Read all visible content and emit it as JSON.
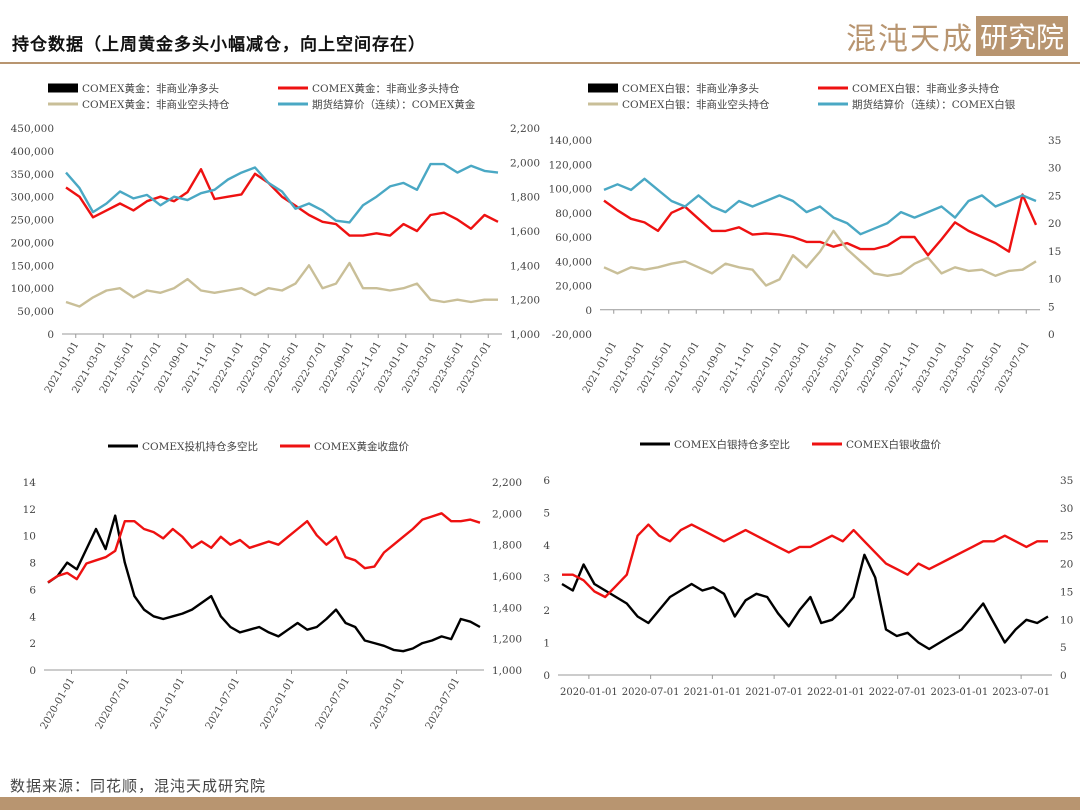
{
  "header": {
    "title": "持仓数据（上周黄金多头小幅减仓，向上空间存在）",
    "logo_text": "混沌天成",
    "logo_box_text": "研究院"
  },
  "footer": {
    "source": "数据来源：同花顺，混沌天成研究院"
  },
  "colors": {
    "black": "#000000",
    "red": "#ee1111",
    "tan": "#c9bf98",
    "blue": "#4aa8c4",
    "brand": "#b89570"
  },
  "chart_data": [
    {
      "id": "gold-positions",
      "type": "line",
      "title": "",
      "legend": [
        "COMEX黄金：非商业净多头",
        "COMEX黄金：非商业多头持仓",
        "COMEX黄金：非商业空头持仓",
        "期货结算价（连续）：COMEX黄金"
      ],
      "x_ticks": [
        "2021-01-01",
        "2021-03-01",
        "2021-05-01",
        "2021-07-01",
        "2021-09-01",
        "2021-11-01",
        "2022-01-01",
        "2022-03-01",
        "2022-05-01",
        "2022-07-01",
        "2022-09-01",
        "2022-11-01",
        "2023-01-01",
        "2023-03-01",
        "2023-05-01",
        "2023-07-01"
      ],
      "y_left": {
        "ticks": [
          "0",
          "50,000",
          "100,000",
          "150,000",
          "200,000",
          "250,000",
          "300,000",
          "350,000",
          "400,000",
          "450,000"
        ],
        "min": 0,
        "max": 450000
      },
      "y_right": {
        "ticks": [
          "1,000",
          "1,200",
          "1,400",
          "1,600",
          "1,800",
          "2,000",
          "2,200"
        ],
        "min": 1000,
        "max": 2200
      },
      "series": [
        {
          "name": "COMEX黄金：非商业多头持仓",
          "color": "red",
          "axis": "left",
          "x": [
            0,
            1,
            2,
            3,
            4,
            5,
            6,
            7,
            8,
            9,
            10,
            11,
            12,
            13,
            14,
            15,
            16,
            17,
            18,
            19,
            20,
            21,
            22,
            23,
            24,
            25,
            26,
            27,
            28,
            29,
            30,
            31,
            32
          ],
          "values": [
            320000,
            300000,
            255000,
            270000,
            285000,
            270000,
            290000,
            300000,
            290000,
            310000,
            360000,
            295000,
            300000,
            305000,
            350000,
            330000,
            300000,
            280000,
            260000,
            245000,
            240000,
            215000,
            215000,
            220000,
            215000,
            240000,
            225000,
            260000,
            265000,
            250000,
            230000,
            260000,
            245000
          ]
        },
        {
          "name": "COMEX黄金：非商业空头持仓",
          "color": "tan",
          "axis": "left",
          "x": [
            0,
            1,
            2,
            3,
            4,
            5,
            6,
            7,
            8,
            9,
            10,
            11,
            12,
            13,
            14,
            15,
            16,
            17,
            18,
            19,
            20,
            21,
            22,
            23,
            24,
            25,
            26,
            27,
            28,
            29,
            30,
            31,
            32
          ],
          "values": [
            70000,
            60000,
            80000,
            95000,
            100000,
            80000,
            95000,
            90000,
            100000,
            120000,
            95000,
            90000,
            95000,
            100000,
            85000,
            100000,
            95000,
            110000,
            150000,
            100000,
            110000,
            155000,
            100000,
            100000,
            95000,
            100000,
            110000,
            75000,
            70000,
            75000,
            70000,
            75000,
            75000
          ]
        },
        {
          "name": "期货结算价（连续）：COMEX黄金",
          "color": "blue",
          "axis": "right",
          "x": [
            0,
            1,
            2,
            3,
            4,
            5,
            6,
            7,
            8,
            9,
            10,
            11,
            12,
            13,
            14,
            15,
            16,
            17,
            18,
            19,
            20,
            21,
            22,
            23,
            24,
            25,
            26,
            27,
            28,
            29,
            30,
            31,
            32
          ],
          "values": [
            1940,
            1850,
            1710,
            1760,
            1830,
            1790,
            1810,
            1750,
            1800,
            1780,
            1820,
            1840,
            1900,
            1940,
            1970,
            1880,
            1830,
            1730,
            1760,
            1720,
            1660,
            1650,
            1750,
            1800,
            1860,
            1880,
            1840,
            1990,
            1990,
            1940,
            1980,
            1950,
            1940
          ]
        }
      ]
    },
    {
      "id": "silver-positions",
      "type": "line",
      "title": "",
      "legend": [
        "COMEX白银：非商业净多头",
        "COMEX白银：非商业多头持仓",
        "COMEX白银：非商业空头持仓",
        "期货结算价（连续）：COMEX白银"
      ],
      "x_ticks": [
        "2021-01-01",
        "2021-03-01",
        "2021-05-01",
        "2021-07-01",
        "2021-09-01",
        "2021-11-01",
        "2022-01-01",
        "2022-03-01",
        "2022-05-01",
        "2022-07-01",
        "2022-09-01",
        "2022-11-01",
        "2023-01-01",
        "2023-03-01",
        "2023-05-01",
        "2023-07-01"
      ],
      "y_left": {
        "ticks": [
          "-20,000",
          "0",
          "20,000",
          "40,000",
          "60,000",
          "80,000",
          "100,000",
          "120,000",
          "140,000"
        ],
        "min": -20000,
        "max": 140000
      },
      "y_right": {
        "ticks": [
          "0",
          "5",
          "10",
          "15",
          "20",
          "25",
          "30",
          "35"
        ],
        "min": 0,
        "max": 35
      },
      "series": [
        {
          "name": "COMEX白银：非商业多头持仓",
          "color": "red",
          "axis": "left",
          "x": [
            0,
            1,
            2,
            3,
            4,
            5,
            6,
            7,
            8,
            9,
            10,
            11,
            12,
            13,
            14,
            15,
            16,
            17,
            18,
            19,
            20,
            21,
            22,
            23,
            24,
            25,
            26,
            27,
            28,
            29,
            30,
            31,
            32
          ],
          "values": [
            90000,
            82000,
            75000,
            72000,
            65000,
            80000,
            85000,
            75000,
            65000,
            65000,
            68000,
            62000,
            63000,
            62000,
            60000,
            56000,
            56000,
            52000,
            55000,
            50000,
            50000,
            53000,
            60000,
            60000,
            45000,
            58000,
            72000,
            65000,
            60000,
            55000,
            48000,
            95000,
            70000
          ]
        },
        {
          "name": "COMEX白银：非商业空头持仓",
          "color": "tan",
          "axis": "left",
          "x": [
            0,
            1,
            2,
            3,
            4,
            5,
            6,
            7,
            8,
            9,
            10,
            11,
            12,
            13,
            14,
            15,
            16,
            17,
            18,
            19,
            20,
            21,
            22,
            23,
            24,
            25,
            26,
            27,
            28,
            29,
            30,
            31,
            32
          ],
          "values": [
            35000,
            30000,
            35000,
            33000,
            35000,
            38000,
            40000,
            35000,
            30000,
            38000,
            35000,
            33000,
            20000,
            25000,
            45000,
            35000,
            48000,
            65000,
            50000,
            40000,
            30000,
            28000,
            30000,
            38000,
            43000,
            30000,
            35000,
            32000,
            33000,
            28000,
            32000,
            33000,
            40000
          ]
        },
        {
          "name": "期货结算价（连续）：COMEX白银",
          "color": "blue",
          "axis": "right",
          "x": [
            0,
            1,
            2,
            3,
            4,
            5,
            6,
            7,
            8,
            9,
            10,
            11,
            12,
            13,
            14,
            15,
            16,
            17,
            18,
            19,
            20,
            21,
            22,
            23,
            24,
            25,
            26,
            27,
            28,
            29,
            30,
            31,
            32
          ],
          "values": [
            26,
            27,
            26,
            28,
            26,
            24,
            23,
            25,
            23,
            22,
            24,
            23,
            24,
            25,
            24,
            22,
            23,
            21,
            20,
            18,
            19,
            20,
            22,
            21,
            22,
            23,
            21,
            24,
            25,
            23,
            24,
            25,
            24
          ]
        }
      ]
    },
    {
      "id": "gold-ratio",
      "type": "line",
      "title": "",
      "legend": [
        "COMEX投机持仓多空比",
        "COMEX黄金收盘价"
      ],
      "x_ticks": [
        "2020-01-01",
        "2020-07-01",
        "2021-01-01",
        "2021-07-01",
        "2022-01-01",
        "2022-07-01",
        "2023-01-01",
        "2023-07-01"
      ],
      "y_left": {
        "ticks": [
          "0",
          "2",
          "4",
          "6",
          "8",
          "10",
          "12",
          "14"
        ],
        "min": 0,
        "max": 14
      },
      "y_right": {
        "ticks": [
          "1,000",
          "1,200",
          "1,400",
          "1,600",
          "1,800",
          "2,000",
          "2,200"
        ],
        "min": 1000,
        "max": 2200
      },
      "series": [
        {
          "name": "COMEX投机持仓多空比",
          "color": "black",
          "axis": "left",
          "x": [
            0,
            1,
            2,
            3,
            4,
            5,
            6,
            7,
            8,
            9,
            10,
            11,
            12,
            13,
            14,
            15,
            16,
            17,
            18,
            19,
            20,
            21,
            22,
            23,
            24,
            25,
            26,
            27,
            28,
            29,
            30,
            31,
            32,
            33,
            34,
            35,
            36,
            37,
            38,
            39,
            40,
            41,
            42,
            43,
            44,
            45
          ],
          "values": [
            6.5,
            7,
            8,
            7.5,
            9,
            10.5,
            9,
            11.5,
            8,
            5.5,
            4.5,
            4,
            3.8,
            4,
            4.2,
            4.5,
            5,
            5.5,
            4,
            3.2,
            2.8,
            3,
            3.2,
            2.8,
            2.5,
            3,
            3.5,
            3,
            3.2,
            3.8,
            4.5,
            3.5,
            3.2,
            2.2,
            2,
            1.8,
            1.5,
            1.4,
            1.6,
            2,
            2.2,
            2.5,
            2.3,
            3.8,
            3.6,
            3.2
          ]
        },
        {
          "name": "COMEX黄金收盘价",
          "color": "red",
          "axis": "right",
          "x": [
            0,
            1,
            2,
            3,
            4,
            5,
            6,
            7,
            8,
            9,
            10,
            11,
            12,
            13,
            14,
            15,
            16,
            17,
            18,
            19,
            20,
            21,
            22,
            23,
            24,
            25,
            26,
            27,
            28,
            29,
            30,
            31,
            32,
            33,
            34,
            35,
            36,
            37,
            38,
            39,
            40,
            41,
            42,
            43,
            44,
            45
          ],
          "values": [
            1560,
            1600,
            1620,
            1580,
            1680,
            1700,
            1720,
            1760,
            1950,
            1950,
            1900,
            1880,
            1840,
            1900,
            1850,
            1780,
            1820,
            1780,
            1850,
            1800,
            1830,
            1780,
            1800,
            1820,
            1800,
            1850,
            1900,
            1950,
            1860,
            1800,
            1850,
            1720,
            1700,
            1650,
            1660,
            1750,
            1800,
            1850,
            1900,
            1960,
            1980,
            2000,
            1950,
            1950,
            1960,
            1940
          ]
        }
      ]
    },
    {
      "id": "silver-ratio",
      "type": "line",
      "title": "",
      "legend": [
        "COMEX白银持仓多空比",
        "COMEX白银收盘价"
      ],
      "x_ticks": [
        "2020-01-01",
        "2020-07-01",
        "2021-01-01",
        "2021-07-01",
        "2022-01-01",
        "2022-07-01",
        "2023-01-01",
        "2023-07-01"
      ],
      "y_left": {
        "ticks": [
          "0",
          "1",
          "2",
          "3",
          "4",
          "5",
          "6"
        ],
        "min": 0,
        "max": 6
      },
      "y_right": {
        "ticks": [
          "0",
          "5",
          "10",
          "15",
          "20",
          "25",
          "30",
          "35"
        ],
        "min": 0,
        "max": 35
      },
      "series": [
        {
          "name": "COMEX白银持仓多空比",
          "color": "black",
          "axis": "left",
          "x": [
            0,
            1,
            2,
            3,
            4,
            5,
            6,
            7,
            8,
            9,
            10,
            11,
            12,
            13,
            14,
            15,
            16,
            17,
            18,
            19,
            20,
            21,
            22,
            23,
            24,
            25,
            26,
            27,
            28,
            29,
            30,
            31,
            32,
            33,
            34,
            35,
            36,
            37,
            38,
            39,
            40,
            41,
            42,
            43,
            44,
            45
          ],
          "values": [
            2.8,
            2.6,
            3.4,
            2.8,
            2.6,
            2.4,
            2.2,
            1.8,
            1.6,
            2,
            2.4,
            2.6,
            2.8,
            2.6,
            2.7,
            2.5,
            1.8,
            2.3,
            2.5,
            2.4,
            1.9,
            1.5,
            2,
            2.4,
            1.6,
            1.7,
            2,
            2.4,
            3.7,
            3,
            1.4,
            1.2,
            1.3,
            1,
            0.8,
            1,
            1.2,
            1.4,
            1.8,
            2.2,
            1.6,
            1,
            1.4,
            1.7,
            1.6,
            1.8
          ]
        },
        {
          "name": "COMEX白银收盘价",
          "color": "red",
          "axis": "right",
          "x": [
            0,
            1,
            2,
            3,
            4,
            5,
            6,
            7,
            8,
            9,
            10,
            11,
            12,
            13,
            14,
            15,
            16,
            17,
            18,
            19,
            20,
            21,
            22,
            23,
            24,
            25,
            26,
            27,
            28,
            29,
            30,
            31,
            32,
            33,
            34,
            35,
            36,
            37,
            38,
            39,
            40,
            41,
            42,
            43,
            44,
            45
          ],
          "values": [
            18,
            18,
            17,
            15,
            14,
            16,
            18,
            25,
            27,
            25,
            24,
            26,
            27,
            26,
            25,
            24,
            25,
            26,
            25,
            24,
            23,
            22,
            23,
            23,
            24,
            25,
            24,
            26,
            24,
            22,
            20,
            19,
            18,
            20,
            19,
            20,
            21,
            22,
            23,
            24,
            24,
            25,
            24,
            23,
            24,
            24
          ]
        }
      ]
    }
  ]
}
